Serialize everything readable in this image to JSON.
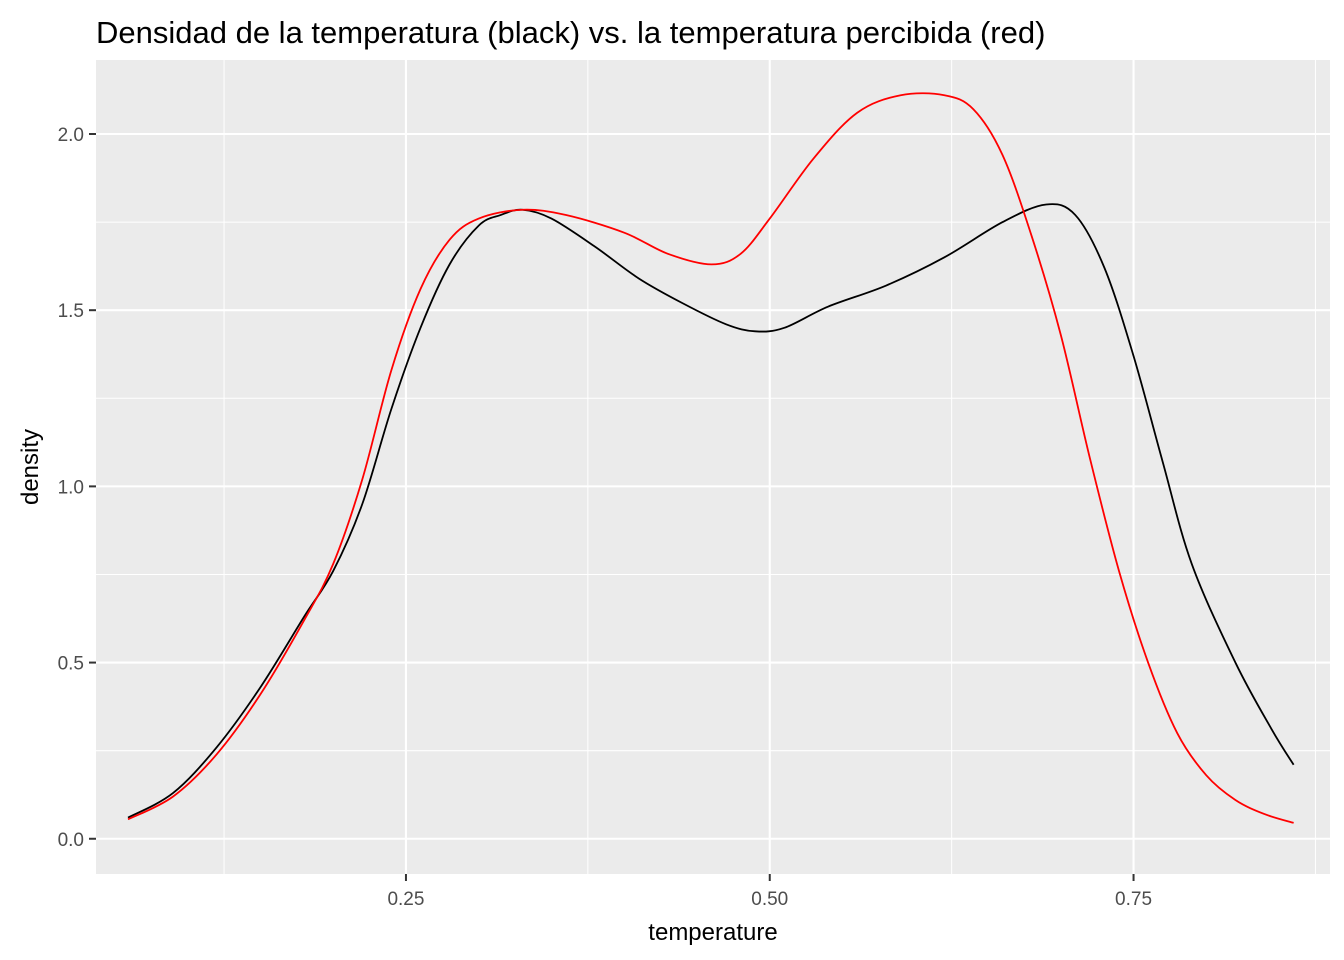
{
  "chart_data": {
    "type": "line",
    "title": "Densidad de la temperatura (black) vs. la temperatura percibida (red)",
    "xlabel": "temperature",
    "ylabel": "density",
    "xlim": [
      0.037,
      0.885
    ],
    "ylim": [
      -0.1,
      2.21
    ],
    "xticks": [
      {
        "value": 0.25,
        "label": "0.25"
      },
      {
        "value": 0.5,
        "label": "0.50"
      },
      {
        "value": 0.75,
        "label": "0.75"
      }
    ],
    "yticks": [
      {
        "value": 0.0,
        "label": "0.0"
      },
      {
        "value": 0.5,
        "label": "0.5"
      },
      {
        "value": 1.0,
        "label": "1.0"
      },
      {
        "value": 1.5,
        "label": "1.5"
      },
      {
        "value": 2.0,
        "label": "2.0"
      }
    ],
    "x_minor": [
      0.125,
      0.375,
      0.625,
      0.875
    ],
    "y_minor": [
      0.25,
      0.75,
      1.25,
      1.75
    ],
    "grid": true,
    "legend": "none",
    "series": [
      {
        "color": "#000000",
        "points": [
          [
            0.059,
            0.06
          ],
          [
            0.09,
            0.13
          ],
          [
            0.12,
            0.26
          ],
          [
            0.15,
            0.43
          ],
          [
            0.18,
            0.63
          ],
          [
            0.2,
            0.76
          ],
          [
            0.22,
            0.95
          ],
          [
            0.24,
            1.22
          ],
          [
            0.26,
            1.45
          ],
          [
            0.28,
            1.63
          ],
          [
            0.3,
            1.74
          ],
          [
            0.315,
            1.77
          ],
          [
            0.33,
            1.785
          ],
          [
            0.35,
            1.76
          ],
          [
            0.38,
            1.68
          ],
          [
            0.41,
            1.59
          ],
          [
            0.44,
            1.52
          ],
          [
            0.47,
            1.46
          ],
          [
            0.49,
            1.44
          ],
          [
            0.51,
            1.45
          ],
          [
            0.54,
            1.51
          ],
          [
            0.58,
            1.57
          ],
          [
            0.62,
            1.65
          ],
          [
            0.66,
            1.75
          ],
          [
            0.69,
            1.8
          ],
          [
            0.71,
            1.77
          ],
          [
            0.73,
            1.62
          ],
          [
            0.75,
            1.37
          ],
          [
            0.77,
            1.07
          ],
          [
            0.79,
            0.78
          ],
          [
            0.82,
            0.5
          ],
          [
            0.845,
            0.31
          ],
          [
            0.86,
            0.21
          ]
        ]
      },
      {
        "color": "#ff0000",
        "points": [
          [
            0.059,
            0.055
          ],
          [
            0.09,
            0.12
          ],
          [
            0.12,
            0.24
          ],
          [
            0.15,
            0.41
          ],
          [
            0.18,
            0.62
          ],
          [
            0.2,
            0.78
          ],
          [
            0.22,
            1.02
          ],
          [
            0.24,
            1.33
          ],
          [
            0.26,
            1.56
          ],
          [
            0.28,
            1.7
          ],
          [
            0.3,
            1.76
          ],
          [
            0.33,
            1.785
          ],
          [
            0.36,
            1.77
          ],
          [
            0.4,
            1.72
          ],
          [
            0.43,
            1.66
          ],
          [
            0.46,
            1.63
          ],
          [
            0.48,
            1.66
          ],
          [
            0.5,
            1.76
          ],
          [
            0.53,
            1.93
          ],
          [
            0.56,
            2.06
          ],
          [
            0.59,
            2.11
          ],
          [
            0.62,
            2.11
          ],
          [
            0.64,
            2.07
          ],
          [
            0.66,
            1.94
          ],
          [
            0.68,
            1.71
          ],
          [
            0.7,
            1.43
          ],
          [
            0.72,
            1.08
          ],
          [
            0.74,
            0.76
          ],
          [
            0.76,
            0.5
          ],
          [
            0.78,
            0.3
          ],
          [
            0.8,
            0.18
          ],
          [
            0.82,
            0.11
          ],
          [
            0.84,
            0.07
          ],
          [
            0.86,
            0.045
          ]
        ]
      }
    ]
  }
}
